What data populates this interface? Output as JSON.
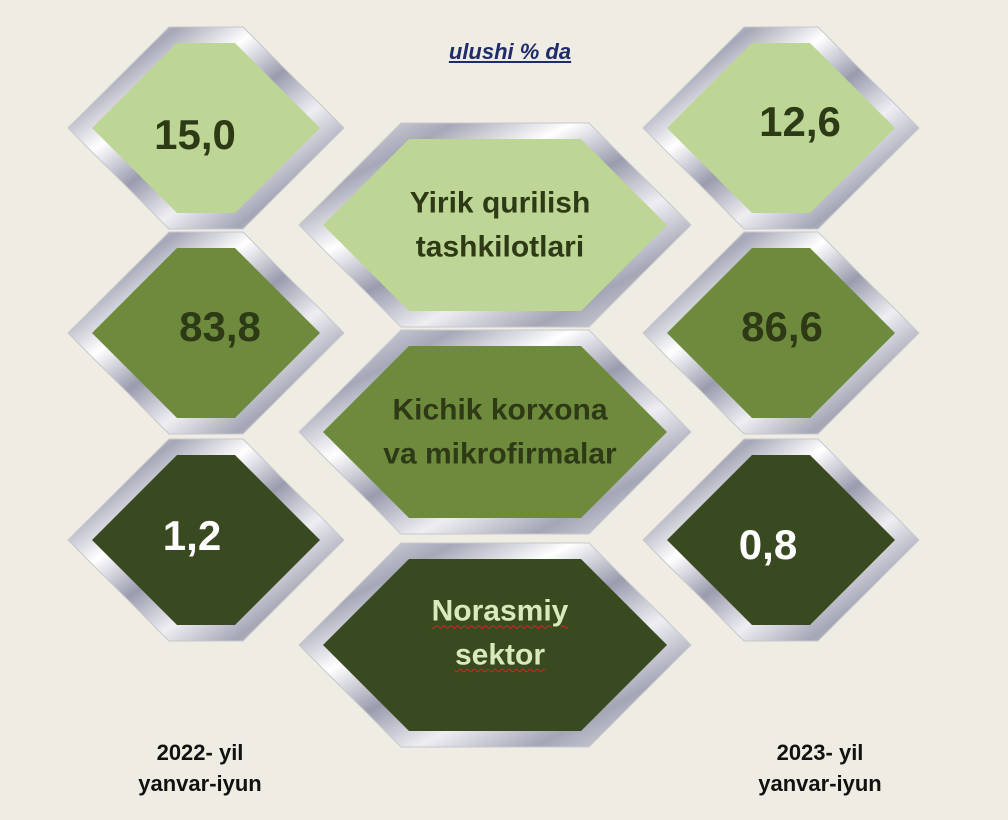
{
  "title": "ulushi % da",
  "colors": {
    "light": "#bdd696",
    "medium": "#6e8b3d",
    "dark": "#3a4a20",
    "frame": "silver"
  },
  "categories": [
    {
      "label_line1": "Yirik qurilish",
      "label_line2": "tashkilotlari",
      "tone": "light"
    },
    {
      "label_line1": "Kichik korxona",
      "label_line2": "va mikrofirmalar",
      "tone": "medium"
    },
    {
      "label_line1": "Norasmiy",
      "label_line2": "sektor",
      "tone": "dark"
    }
  ],
  "periods": [
    {
      "year": "2022- yil",
      "months": "yanvar-iyun",
      "values": [
        "15,0",
        "83,8",
        "1,2"
      ]
    },
    {
      "year": "2023- yil",
      "months": "yanvar-iyun",
      "values": [
        "12,6",
        "86,6",
        "0,8"
      ]
    }
  ]
}
